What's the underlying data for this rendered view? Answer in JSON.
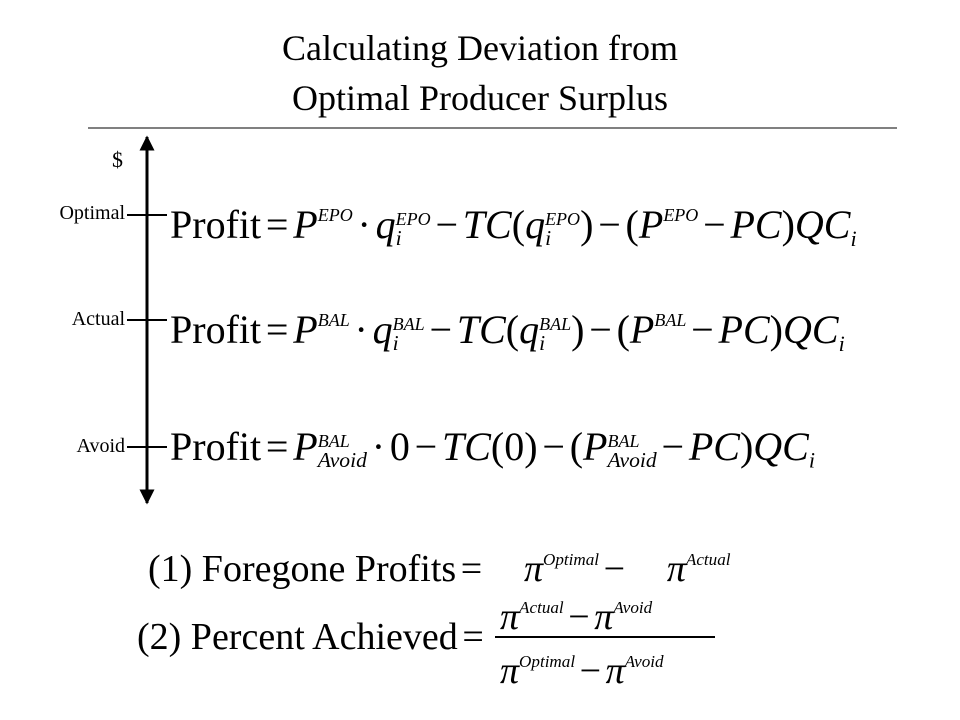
{
  "title": [
    "Calculating Deviation from",
    "Optimal Producer Surplus"
  ],
  "axis": {
    "unit": "$",
    "levels": [
      "Optimal",
      "Actual",
      "Avoid"
    ]
  },
  "equations": [
    {
      "parts": [
        "Profit",
        "=",
        "P",
        "EPO",
        "·",
        "q",
        "EPO",
        "i",
        "−",
        "TC",
        "(",
        "q",
        "EPO",
        "i",
        ")",
        "−",
        "(",
        "P",
        "EPO",
        "−",
        "PC",
        ")",
        "QC",
        "i"
      ]
    },
    {
      "parts": [
        "Profit",
        "=",
        "P",
        "BAL",
        "·",
        "q",
        "BAL",
        "i",
        "−",
        "TC",
        "(",
        "q",
        "BAL",
        "i",
        ")",
        "−",
        "(",
        "P",
        "BAL",
        "−",
        "PC",
        ")",
        "QC",
        "i"
      ]
    },
    {
      "parts": [
        "Profit",
        "=",
        "P",
        "BAL",
        "Avoid",
        "·",
        "0",
        "−",
        "TC",
        "(0)",
        "−",
        "(",
        "P",
        "BAL",
        "Avoid",
        "−",
        "PC",
        ")",
        "QC",
        "i"
      ]
    }
  ],
  "formulas": [
    {
      "parts": [
        "(1)  Foregone Profits",
        "=",
        "π",
        "Optimal",
        "−",
        "π",
        "Actual"
      ]
    },
    {
      "parts": [
        "(2)  Percent Achieved",
        "="
      ],
      "numerator": [
        "π",
        "Actual",
        "−",
        "π",
        "Avoid"
      ],
      "denominator": [
        "π",
        "Optimal",
        "−",
        "π",
        "Avoid"
      ]
    }
  ]
}
